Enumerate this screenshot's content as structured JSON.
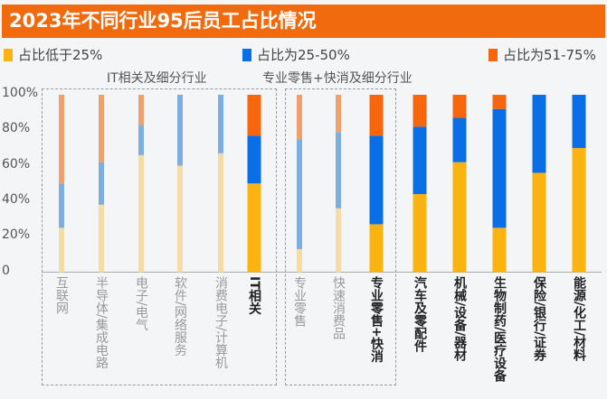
{
  "title": "2023年不同行业95后员工占比情况",
  "legend": [
    {
      "label": "占比低于25%",
      "color": "#fbb40f"
    },
    {
      "label": "占比为25-50%",
      "color": "#0a6ee6"
    },
    {
      "label": "占比为51-75%",
      "color": "#f7650c"
    }
  ],
  "groups": [
    {
      "title": "IT相关及细分行业"
    },
    {
      "title": "专业零售+快消及细分行业"
    }
  ],
  "chart_data": {
    "type": "bar",
    "stacked": true,
    "title": "2023年不同行业95后员工占比情况",
    "ylim": [
      0,
      100
    ],
    "yticks": [
      "0",
      "20%",
      "40%",
      "60%",
      "80%",
      "100%"
    ],
    "grid": false,
    "legend_position": "top",
    "categories": [
      "互联网",
      "半导体/集成电路",
      "电子/电气",
      "软件/网络服务",
      "消费电子/计算机",
      "IT相关",
      "专业零售",
      "快速消费品",
      "专业零售+快消",
      "汽车及零配件",
      "机械/设备/器材",
      "生物制药/医疗设备",
      "保险/银行/证券",
      "能源/化工/材料"
    ],
    "highlighted": [
      false,
      false,
      false,
      false,
      false,
      true,
      false,
      false,
      true,
      true,
      true,
      true,
      true,
      true
    ],
    "series": [
      {
        "name": "占比低于25%",
        "values": [
          25,
          38,
          66,
          60,
          67,
          50,
          13,
          36,
          27,
          44,
          62,
          25,
          56,
          70
        ]
      },
      {
        "name": "占比为25-50%",
        "values": [
          25,
          24,
          17,
          40,
          33,
          27,
          62,
          43,
          50,
          38,
          25,
          67,
          44,
          30
        ]
      },
      {
        "name": "占比为51-75%",
        "values": [
          50,
          38,
          17,
          0,
          0,
          23,
          25,
          21,
          23,
          18,
          13,
          8,
          0,
          0
        ]
      }
    ]
  }
}
